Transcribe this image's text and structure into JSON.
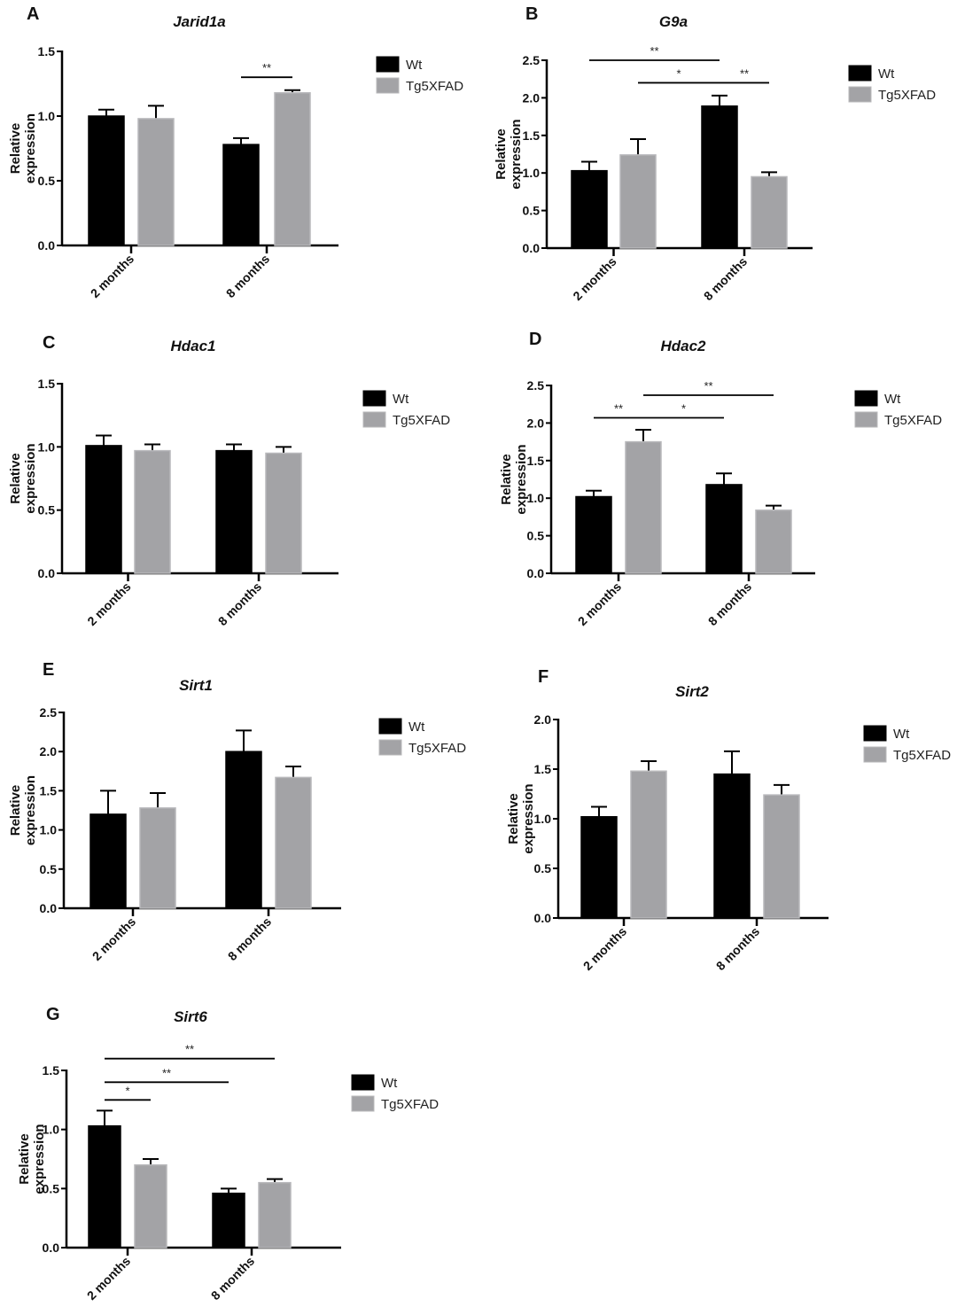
{
  "chart_data": [
    {
      "type": "bar",
      "panel": "A",
      "title": "Jarid1a",
      "ylabel": "Relative expression",
      "xlabel": "",
      "ylim": [
        0,
        1.5
      ],
      "yticks": [
        "0.0",
        "0.5",
        "1.0",
        "1.5"
      ],
      "categories": [
        "2 months",
        "8 months"
      ],
      "series": [
        {
          "name": "Wt",
          "values": [
            1.0,
            0.78
          ],
          "errors": [
            0.05,
            0.05
          ]
        },
        {
          "name": "Tg5XFAD",
          "values": [
            0.98,
            1.18
          ],
          "errors": [
            0.1,
            0.02
          ]
        }
      ],
      "significance": [
        {
          "from": "Wt 8 months",
          "to": "Tg5XFAD 8 months",
          "label": "**",
          "level": 1.3
        }
      ]
    },
    {
      "type": "bar",
      "panel": "B",
      "title": "G9a",
      "ylabel": "Relative expression",
      "xlabel": "",
      "ylim": [
        0,
        2.5
      ],
      "yticks": [
        "0.0",
        "0.5",
        "1.0",
        "1.5",
        "2.0",
        "2.5"
      ],
      "categories": [
        "2 months",
        "8 months"
      ],
      "series": [
        {
          "name": "Wt",
          "values": [
            1.03,
            1.89
          ],
          "errors": [
            0.12,
            0.14
          ]
        },
        {
          "name": "Tg5XFAD",
          "values": [
            1.24,
            0.95
          ],
          "errors": [
            0.21,
            0.06
          ]
        }
      ],
      "significance": [
        {
          "from": "Wt 2 months",
          "to": "Wt 8 months",
          "label": "**",
          "level": 2.5
        },
        {
          "from": "Tg5XFAD 2 months",
          "to": "Wt 8 months",
          "label": "*",
          "level": 2.2
        },
        {
          "from": "Wt 8 months",
          "to": "Tg5XFAD 8 months",
          "label": "**",
          "level": 2.2
        }
      ]
    },
    {
      "type": "bar",
      "panel": "C",
      "title": "Hdac1",
      "ylabel": "Relative expression",
      "xlabel": "",
      "ylim": [
        0,
        1.5
      ],
      "yticks": [
        "0.0",
        "0.5",
        "1.0",
        "1.5"
      ],
      "categories": [
        "2 months",
        "8 months"
      ],
      "series": [
        {
          "name": "Wt",
          "values": [
            1.01,
            0.97
          ],
          "errors": [
            0.08,
            0.05
          ]
        },
        {
          "name": "Tg5XFAD",
          "values": [
            0.97,
            0.95
          ],
          "errors": [
            0.05,
            0.05
          ]
        }
      ],
      "significance": []
    },
    {
      "type": "bar",
      "panel": "D",
      "title": "Hdac2",
      "ylabel": "Relative expression",
      "xlabel": "",
      "ylim": [
        0,
        2.5
      ],
      "yticks": [
        "0.0",
        "0.5",
        "1.0",
        "1.5",
        "2.0",
        "2.5"
      ],
      "categories": [
        "2 months",
        "8 months"
      ],
      "series": [
        {
          "name": "Wt",
          "values": [
            1.02,
            1.18
          ],
          "errors": [
            0.08,
            0.15
          ]
        },
        {
          "name": "Tg5XFAD",
          "values": [
            1.75,
            0.84
          ],
          "errors": [
            0.16,
            0.06
          ]
        }
      ],
      "significance": [
        {
          "from": "Wt 2 months",
          "to": "Tg5XFAD 2 months",
          "label": "**",
          "level": 2.07
        },
        {
          "from": "Tg5XFAD 2 months",
          "to": "Wt 8 months",
          "label": "*",
          "level": 2.07
        },
        {
          "from": "Tg5XFAD 2 months",
          "to": "Tg5XFAD 8 months",
          "label": "**",
          "level": 2.37
        }
      ]
    },
    {
      "type": "bar",
      "panel": "E",
      "title": "Sirt1",
      "ylabel": "Relative expression",
      "xlabel": "",
      "ylim": [
        0,
        2.5
      ],
      "yticks": [
        "0.0",
        "0.5",
        "1.0",
        "1.5",
        "2.0",
        "2.5"
      ],
      "categories": [
        "2 months",
        "8 months"
      ],
      "series": [
        {
          "name": "Wt",
          "values": [
            1.2,
            2.0
          ],
          "errors": [
            0.3,
            0.27
          ]
        },
        {
          "name": "Tg5XFAD",
          "values": [
            1.28,
            1.67
          ],
          "errors": [
            0.19,
            0.14
          ]
        }
      ],
      "significance": []
    },
    {
      "type": "bar",
      "panel": "F",
      "title": "Sirt2",
      "ylabel": "Relative expression",
      "xlabel": "",
      "ylim": [
        0,
        2.0
      ],
      "yticks": [
        "0.0",
        "0.5",
        "1.0",
        "1.5",
        "2.0"
      ],
      "categories": [
        "2 months",
        "8 months"
      ],
      "series": [
        {
          "name": "Wt",
          "values": [
            1.02,
            1.45
          ],
          "errors": [
            0.1,
            0.23
          ]
        },
        {
          "name": "Tg5XFAD",
          "values": [
            1.48,
            1.24
          ],
          "errors": [
            0.1,
            0.1
          ]
        }
      ],
      "significance": []
    },
    {
      "type": "bar",
      "panel": "G",
      "title": "Sirt6",
      "ylabel": "Relative expression",
      "xlabel": "",
      "ylim": [
        0,
        1.5
      ],
      "yticks": [
        "0.0",
        "0.5",
        "1.0",
        "1.5"
      ],
      "categories": [
        "2 months",
        "8 months"
      ],
      "series": [
        {
          "name": "Wt",
          "values": [
            1.03,
            0.46
          ],
          "errors": [
            0.13,
            0.04
          ]
        },
        {
          "name": "Tg5XFAD",
          "values": [
            0.7,
            0.55
          ],
          "errors": [
            0.05,
            0.03
          ]
        }
      ],
      "significance": [
        {
          "from": "Wt 2 months",
          "to": "Tg5XFAD 2 months",
          "label": "*",
          "level": 1.25
        },
        {
          "from": "Wt 2 months",
          "to": "Wt 8 months",
          "label": "**",
          "level": 1.4
        },
        {
          "from": "Wt 2 months",
          "to": "Tg5XFAD 8 months",
          "label": "**",
          "level": 1.6
        }
      ]
    }
  ],
  "colors": {
    "Wt": "#000000",
    "Tg5XFAD": "#a3a3a6"
  }
}
